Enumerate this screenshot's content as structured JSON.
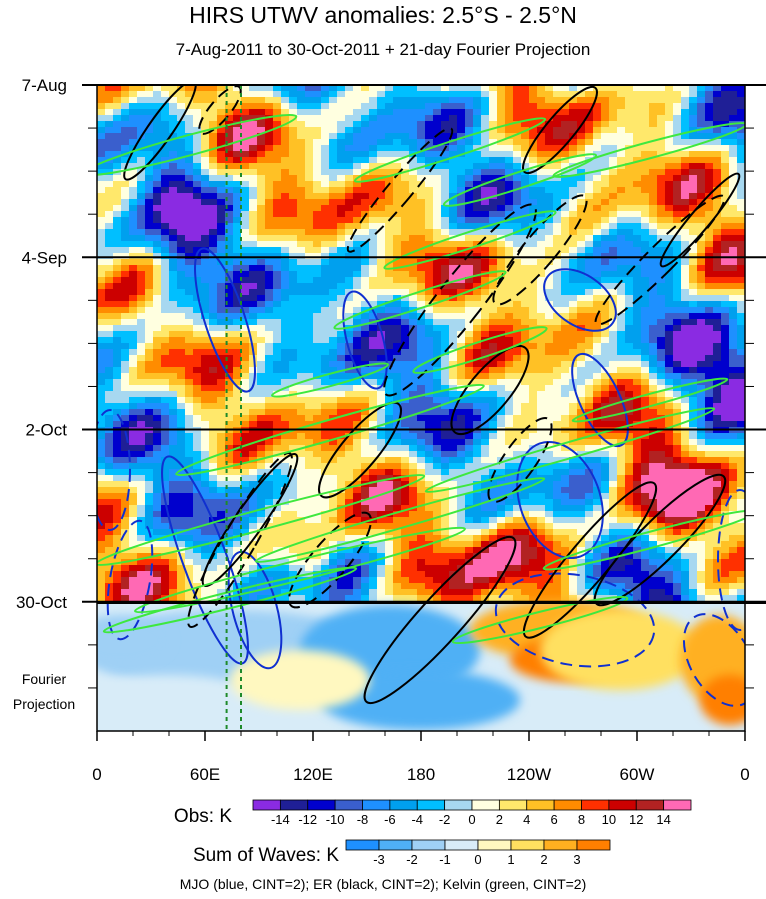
{
  "chart_data": {
    "type": "heatmap",
    "title": "HIRS UTWV anomalies: 2.5°S - 2.5°N",
    "subtitle": "7-Aug-2011 to 30-Oct-2011 + 21-day Fourier Projection",
    "x_ticks": [
      "0",
      "60E",
      "120E",
      "180",
      "120W",
      "60W",
      "0"
    ],
    "x_tick_lon": [
      0,
      60,
      120,
      180,
      240,
      300,
      360
    ],
    "xlim": [
      0,
      360
    ],
    "y_ticks": [
      "7-Aug",
      "4-Sep",
      "2-Oct",
      "30-Oct"
    ],
    "y_tick_day": [
      0,
      28,
      56,
      84
    ],
    "ylim_days": [
      0,
      105
    ],
    "projection_label_line1": "Fourier",
    "projection_label_line2": "Projection",
    "obs_colorbar": {
      "label": "Obs: K",
      "levels": [
        "-14",
        "-12",
        "-10",
        "-8",
        "-6",
        "-4",
        "-2",
        "0",
        "2",
        "4",
        "6",
        "8",
        "10",
        "12",
        "14"
      ],
      "colors": [
        "#8a2be2",
        "#1f1f96",
        "#0000cd",
        "#3a5fcd",
        "#1e90ff",
        "#00a0ee",
        "#00bfff",
        "#a7d8f0",
        "#ffffe0",
        "#ffe86b",
        "#ffc125",
        "#ff8c00",
        "#ff3000",
        "#cc0000",
        "#b22222",
        "#ff69b4"
      ]
    },
    "waves_colorbar": {
      "label": "Sum of Waves: K",
      "levels": [
        "-3",
        "-2",
        "-1",
        "0",
        "1",
        "2",
        "3"
      ],
      "colors": [
        "#1e90ff",
        "#4fb0f5",
        "#9fd0f5",
        "#d8ecf8",
        "#fff8c0",
        "#ffe060",
        "#ffb020",
        "#ff7f00"
      ]
    },
    "footer": "MJO (blue, CINT=2); ER (black, CINT=2); Kelvin (green, CINT=2)",
    "reference_lines_lon": [
      72,
      80
    ]
  }
}
